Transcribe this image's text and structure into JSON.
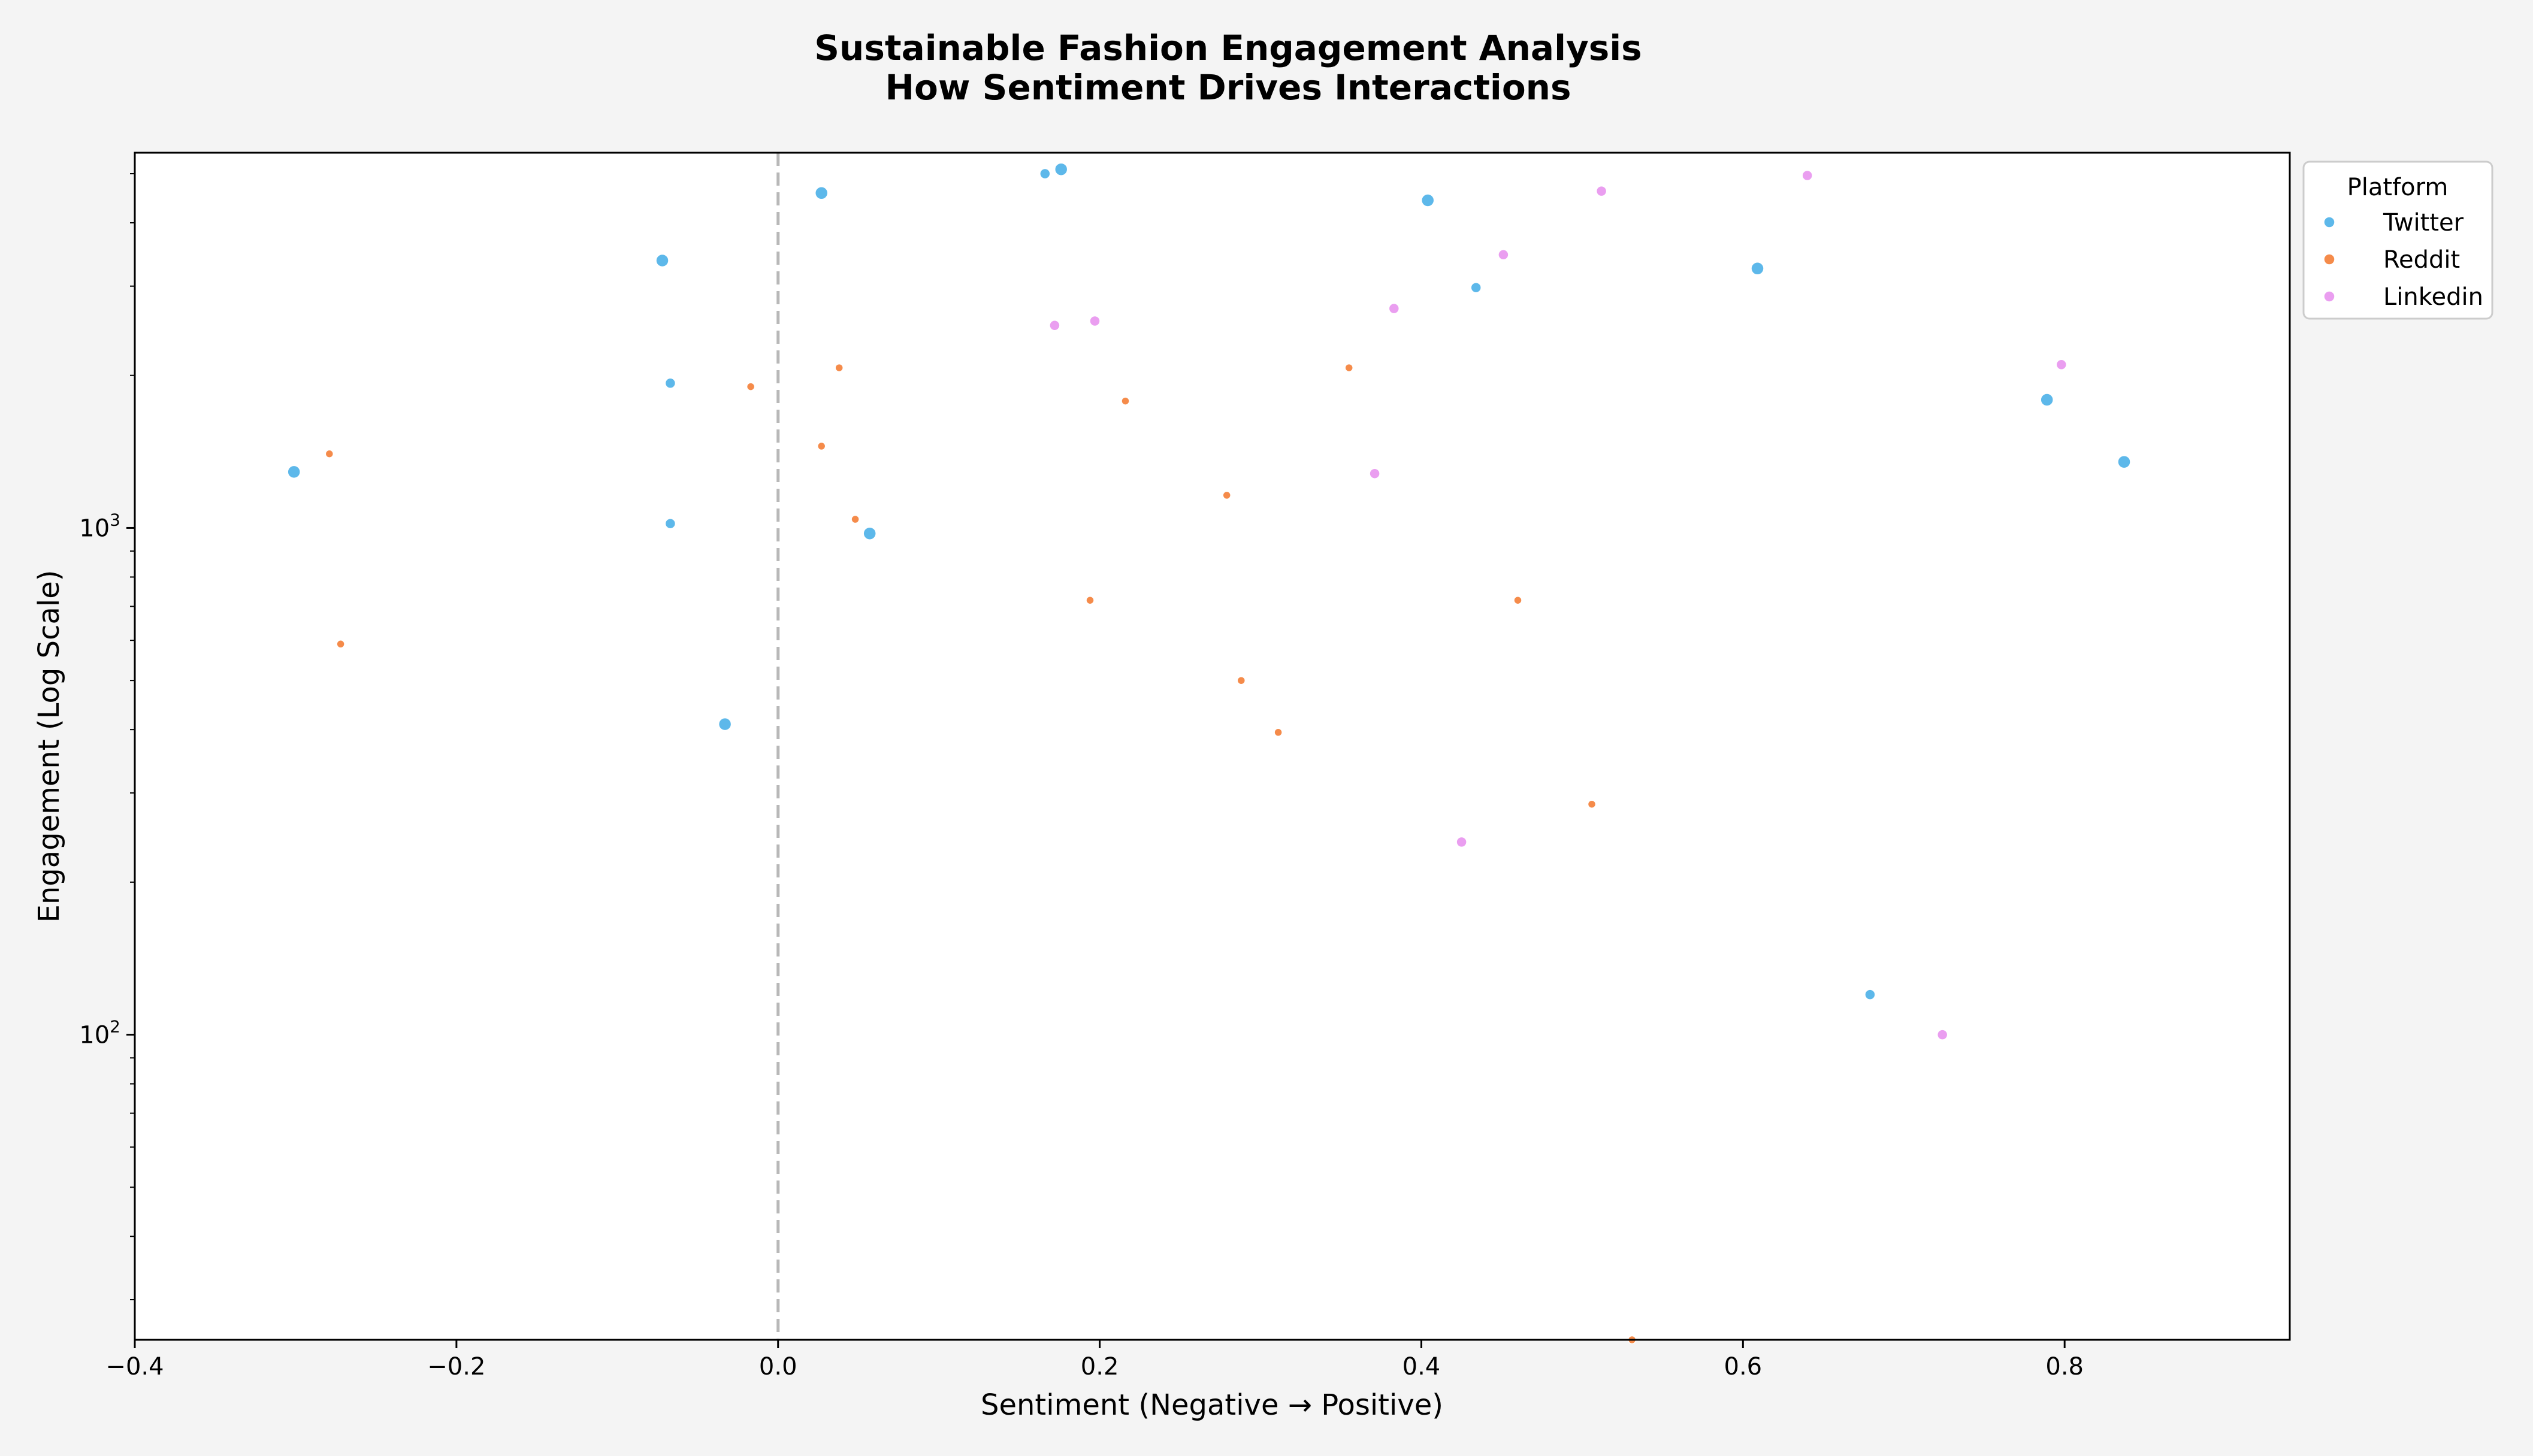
{
  "chart_data": {
    "type": "scatter",
    "title": [
      "Sustainable Fashion Engagement Analysis",
      "How Sentiment Drives Interactions"
    ],
    "xlabel": "Sentiment (Negative → Positive)",
    "ylabel": "Engagement (Log Scale)",
    "xlim": [
      -0.4,
      0.94
    ],
    "ylim": [
      25,
      5500
    ],
    "yscale": "log",
    "grid": false,
    "x_ticks": [
      -0.4,
      -0.2,
      0.0,
      0.2,
      0.4,
      0.6,
      0.8
    ],
    "x_tick_labels": [
      "−0.4",
      "−0.2",
      "0.0",
      "0.2",
      "0.4",
      "0.6",
      "0.8"
    ],
    "y_ticks": [
      100,
      1000
    ],
    "y_tick_labels": [
      {
        "base": "10",
        "exp": "2"
      },
      {
        "base": "10",
        "exp": "3"
      }
    ],
    "reference_line": {
      "x": 0.0,
      "style": "dashed",
      "color": "#b8b8b8"
    },
    "legend": {
      "title": "Platform",
      "placement": "outside-top-right"
    },
    "series": [
      {
        "name": "Twitter",
        "color": "#5db8ea",
        "points": [
          {
            "x": -0.301,
            "y": 1290,
            "s": 2
          },
          {
            "x": -0.072,
            "y": 3370,
            "s": 2
          },
          {
            "x": -0.067,
            "y": 1930,
            "s": 1
          },
          {
            "x": -0.067,
            "y": 1020,
            "s": 1
          },
          {
            "x": -0.033,
            "y": 410,
            "s": 2
          },
          {
            "x": 0.027,
            "y": 4580,
            "s": 2
          },
          {
            "x": 0.057,
            "y": 975,
            "s": 2
          },
          {
            "x": 0.166,
            "y": 5000,
            "s": 1
          },
          {
            "x": 0.176,
            "y": 5100,
            "s": 2
          },
          {
            "x": 0.404,
            "y": 4430,
            "s": 2
          },
          {
            "x": 0.434,
            "y": 2980,
            "s": 1
          },
          {
            "x": 0.609,
            "y": 3250,
            "s": 2
          },
          {
            "x": 0.679,
            "y": 120,
            "s": 1
          },
          {
            "x": 0.789,
            "y": 1790,
            "s": 2
          },
          {
            "x": 0.837,
            "y": 1350,
            "s": 2
          }
        ]
      },
      {
        "name": "Reddit",
        "color": "#f58b4a",
        "points": [
          {
            "x": -0.279,
            "y": 1400,
            "s": 0
          },
          {
            "x": -0.272,
            "y": 590,
            "s": 0
          },
          {
            "x": -0.017,
            "y": 1900,
            "s": 0
          },
          {
            "x": 0.027,
            "y": 1450,
            "s": 0
          },
          {
            "x": 0.038,
            "y": 2070,
            "s": 0
          },
          {
            "x": 0.048,
            "y": 1040,
            "s": 0
          },
          {
            "x": 0.194,
            "y": 720,
            "s": 0
          },
          {
            "x": 0.216,
            "y": 1780,
            "s": 0
          },
          {
            "x": 0.279,
            "y": 1160,
            "s": 0
          },
          {
            "x": 0.288,
            "y": 500,
            "s": 0
          },
          {
            "x": 0.311,
            "y": 395,
            "s": 0
          },
          {
            "x": 0.355,
            "y": 2070,
            "s": 0
          },
          {
            "x": 0.46,
            "y": 720,
            "s": 0
          },
          {
            "x": 0.506,
            "y": 285,
            "s": 0
          },
          {
            "x": 0.531,
            "y": 25,
            "s": 0
          }
        ]
      },
      {
        "name": "Linkedin",
        "color": "#ea9ef0",
        "points": [
          {
            "x": 0.172,
            "y": 2510,
            "s": 1
          },
          {
            "x": 0.197,
            "y": 2560,
            "s": 1
          },
          {
            "x": 0.371,
            "y": 1280,
            "s": 1
          },
          {
            "x": 0.383,
            "y": 2710,
            "s": 1
          },
          {
            "x": 0.425,
            "y": 240,
            "s": 1
          },
          {
            "x": 0.451,
            "y": 3460,
            "s": 1
          },
          {
            "x": 0.512,
            "y": 4620,
            "s": 1
          },
          {
            "x": 0.64,
            "y": 4960,
            "s": 1
          },
          {
            "x": 0.724,
            "y": 100,
            "s": 1
          },
          {
            "x": 0.798,
            "y": 2100,
            "s": 1
          }
        ]
      }
    ]
  }
}
